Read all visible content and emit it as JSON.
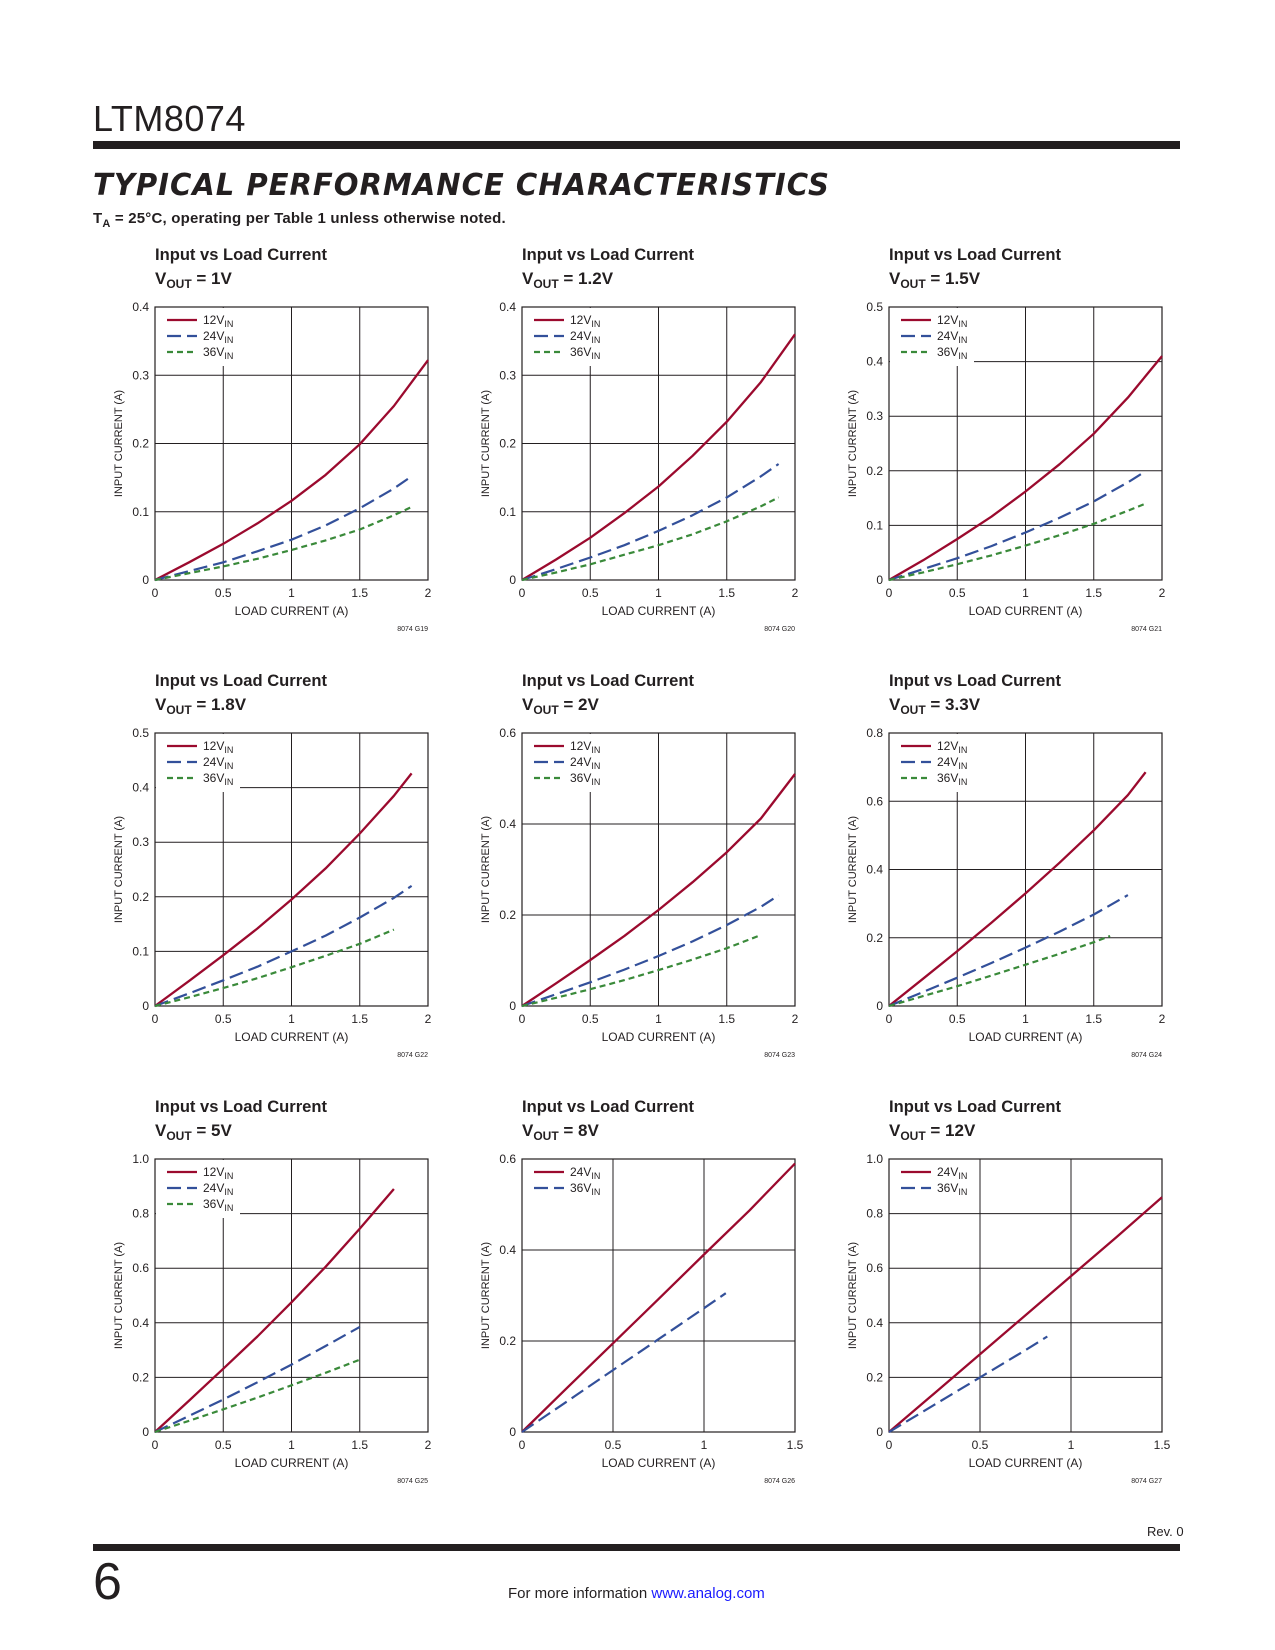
{
  "header": {
    "part_name": "LTM8074",
    "section_title": "TYPICAL PERFORMANCE CHARACTERISTICS",
    "conditions_prefix": "T",
    "conditions_sub": "A",
    "conditions_suffix": " = 25°C, operating per Table 1 unless otherwise noted."
  },
  "footer": {
    "revision": "Rev. 0",
    "page_number": "6",
    "info_text": "For more information ",
    "link_text": "www.analog.com"
  },
  "colors": {
    "12V": "#9b0a2e",
    "24V": "#33509a",
    "36V": "#3a8a3a",
    "grid": "#231f20"
  },
  "chart_data": [
    {
      "type": "line",
      "title": "Input vs Load Current",
      "subtitle_prefix": "V",
      "subtitle_sub": "OUT",
      "subtitle_value": " = 1V",
      "xlabel": "LOAD CURRENT (A)",
      "ylabel": "INPUT CURRENT (A)",
      "xlim": [
        0,
        2
      ],
      "ylim": [
        0,
        0.4
      ],
      "xticks": [
        "0",
        "0.5",
        "1",
        "1.5",
        "2"
      ],
      "yticks": [
        "0",
        "0.1",
        "0.2",
        "0.3",
        "0.4"
      ],
      "figure_id": "8074 G19",
      "series": [
        {
          "name_main": "12V",
          "name_sub": "IN",
          "color": "#9b0a2e",
          "dash": "solid",
          "x": [
            0,
            0.25,
            0.5,
            0.75,
            1.0,
            1.25,
            1.5,
            1.75,
            2.0
          ],
          "y": [
            0,
            0.026,
            0.053,
            0.083,
            0.116,
            0.154,
            0.199,
            0.255,
            0.322
          ]
        },
        {
          "name_main": "24V",
          "name_sub": "IN",
          "color": "#33509a",
          "dash": "dashed",
          "x": [
            0,
            0.25,
            0.5,
            0.75,
            1.0,
            1.25,
            1.5,
            1.75,
            1.88
          ],
          "y": [
            0,
            0.013,
            0.026,
            0.042,
            0.059,
            0.08,
            0.105,
            0.134,
            0.152
          ]
        },
        {
          "name_main": "36V",
          "name_sub": "IN",
          "color": "#3a8a3a",
          "dash": "dotted",
          "x": [
            0,
            0.25,
            0.5,
            0.75,
            1.0,
            1.25,
            1.5,
            1.75,
            1.88
          ],
          "y": [
            0,
            0.01,
            0.02,
            0.031,
            0.044,
            0.058,
            0.074,
            0.095,
            0.107
          ]
        }
      ]
    },
    {
      "type": "line",
      "title": "Input vs Load Current",
      "subtitle_prefix": "V",
      "subtitle_sub": "OUT",
      "subtitle_value": " = 1.2V",
      "xlabel": "LOAD CURRENT (A)",
      "ylabel": "INPUT CURRENT (A)",
      "xlim": [
        0,
        2
      ],
      "ylim": [
        0,
        0.4
      ],
      "xticks": [
        "0",
        "0.5",
        "1",
        "1.5",
        "2"
      ],
      "yticks": [
        "0",
        "0.1",
        "0.2",
        "0.3",
        "0.4"
      ],
      "figure_id": "8074 G20",
      "series": [
        {
          "name_main": "12V",
          "name_sub": "IN",
          "color": "#9b0a2e",
          "dash": "solid",
          "x": [
            0,
            0.25,
            0.5,
            0.75,
            1.0,
            1.25,
            1.5,
            1.75,
            2.0
          ],
          "y": [
            0,
            0.03,
            0.062,
            0.098,
            0.137,
            0.182,
            0.232,
            0.29,
            0.36
          ]
        },
        {
          "name_main": "24V",
          "name_sub": "IN",
          "color": "#33509a",
          "dash": "dashed",
          "x": [
            0,
            0.25,
            0.5,
            0.75,
            1.0,
            1.25,
            1.5,
            1.75,
            1.88
          ],
          "y": [
            0,
            0.016,
            0.033,
            0.051,
            0.072,
            0.095,
            0.121,
            0.152,
            0.17
          ]
        },
        {
          "name_main": "36V",
          "name_sub": "IN",
          "color": "#3a8a3a",
          "dash": "dotted",
          "x": [
            0,
            0.25,
            0.5,
            0.75,
            1.0,
            1.25,
            1.5,
            1.75,
            1.88
          ],
          "y": [
            0,
            0.011,
            0.023,
            0.037,
            0.051,
            0.067,
            0.086,
            0.108,
            0.121
          ]
        }
      ]
    },
    {
      "type": "line",
      "title": "Input vs Load Current",
      "subtitle_prefix": "V",
      "subtitle_sub": "OUT",
      "subtitle_value": " = 1.5V",
      "xlabel": "LOAD CURRENT (A)",
      "ylabel": "INPUT CURRENT (A)",
      "xlim": [
        0,
        2
      ],
      "ylim": [
        0,
        0.5
      ],
      "xticks": [
        "0",
        "0.5",
        "1",
        "1.5",
        "2"
      ],
      "yticks": [
        "0",
        "0.1",
        "0.2",
        "0.3",
        "0.4",
        "0.5"
      ],
      "figure_id": "8074 G21",
      "series": [
        {
          "name_main": "12V",
          "name_sub": "IN",
          "color": "#9b0a2e",
          "dash": "solid",
          "x": [
            0,
            0.25,
            0.5,
            0.75,
            1.0,
            1.25,
            1.5,
            1.75,
            2.0
          ],
          "y": [
            0,
            0.036,
            0.075,
            0.116,
            0.162,
            0.212,
            0.268,
            0.334,
            0.41
          ]
        },
        {
          "name_main": "24V",
          "name_sub": "IN",
          "color": "#33509a",
          "dash": "dashed",
          "x": [
            0,
            0.25,
            0.5,
            0.75,
            1.0,
            1.25,
            1.5,
            1.75,
            1.88
          ],
          "y": [
            0,
            0.02,
            0.04,
            0.062,
            0.087,
            0.114,
            0.144,
            0.179,
            0.199
          ]
        },
        {
          "name_main": "36V",
          "name_sub": "IN",
          "color": "#3a8a3a",
          "dash": "dotted",
          "x": [
            0,
            0.25,
            0.5,
            0.75,
            1.0,
            1.25,
            1.5,
            1.75,
            1.88
          ],
          "y": [
            0,
            0.014,
            0.029,
            0.045,
            0.063,
            0.082,
            0.103,
            0.127,
            0.14
          ]
        }
      ]
    },
    {
      "type": "line",
      "title": "Input vs Load Current",
      "subtitle_prefix": "V",
      "subtitle_sub": "OUT",
      "subtitle_value": " = 1.8V",
      "xlabel": "LOAD CURRENT (A)",
      "ylabel": "INPUT CURRENT (A)",
      "xlim": [
        0,
        2
      ],
      "ylim": [
        0,
        0.5
      ],
      "xticks": [
        "0",
        "0.5",
        "1",
        "1.5",
        "2"
      ],
      "yticks": [
        "0",
        "0.1",
        "0.2",
        "0.3",
        "0.4",
        "0.5"
      ],
      "figure_id": "8074 G22",
      "series": [
        {
          "name_main": "12V",
          "name_sub": "IN",
          "color": "#9b0a2e",
          "dash": "solid",
          "x": [
            0,
            0.25,
            0.5,
            0.75,
            1.0,
            1.25,
            1.5,
            1.75,
            1.88
          ],
          "y": [
            0,
            0.046,
            0.093,
            0.142,
            0.195,
            0.252,
            0.316,
            0.385,
            0.426
          ]
        },
        {
          "name_main": "24V",
          "name_sub": "IN",
          "color": "#33509a",
          "dash": "dashed",
          "x": [
            0,
            0.25,
            0.5,
            0.75,
            1.0,
            1.25,
            1.5,
            1.75,
            1.88
          ],
          "y": [
            0,
            0.023,
            0.047,
            0.072,
            0.1,
            0.129,
            0.162,
            0.198,
            0.22
          ]
        },
        {
          "name_main": "36V",
          "name_sub": "IN",
          "color": "#3a8a3a",
          "dash": "dotted",
          "x": [
            0,
            0.25,
            0.5,
            0.75,
            1.0,
            1.25,
            1.5,
            1.75
          ],
          "y": [
            0,
            0.016,
            0.033,
            0.051,
            0.071,
            0.092,
            0.114,
            0.14
          ]
        }
      ]
    },
    {
      "type": "line",
      "title": "Input vs Load Current",
      "subtitle_prefix": "V",
      "subtitle_sub": "OUT",
      "subtitle_value": " = 2V",
      "xlabel": "LOAD CURRENT (A)",
      "ylabel": "INPUT CURRENT (A)",
      "xlim": [
        0,
        2
      ],
      "ylim": [
        0,
        0.6
      ],
      "xticks": [
        "0",
        "0.5",
        "1",
        "1.5",
        "2"
      ],
      "yticks": [
        "0",
        "0.2",
        "0.4",
        "0.6"
      ],
      "figure_id": "8074 G23",
      "series": [
        {
          "name_main": "12V",
          "name_sub": "IN",
          "color": "#9b0a2e",
          "dash": "solid",
          "x": [
            0,
            0.25,
            0.5,
            0.75,
            1.0,
            1.25,
            1.5,
            1.75,
            2.0
          ],
          "y": [
            0,
            0.05,
            0.101,
            0.154,
            0.211,
            0.272,
            0.338,
            0.412,
            0.51
          ]
        },
        {
          "name_main": "24V",
          "name_sub": "IN",
          "color": "#33509a",
          "dash": "dashed",
          "x": [
            0,
            0.25,
            0.5,
            0.75,
            1.0,
            1.25,
            1.5,
            1.75,
            1.88
          ],
          "y": [
            0,
            0.026,
            0.052,
            0.08,
            0.11,
            0.142,
            0.178,
            0.218,
            0.243
          ]
        },
        {
          "name_main": "36V",
          "name_sub": "IN",
          "color": "#3a8a3a",
          "dash": "dotted",
          "x": [
            0,
            0.25,
            0.5,
            0.75,
            1.0,
            1.25,
            1.5,
            1.75
          ],
          "y": [
            0,
            0.018,
            0.037,
            0.057,
            0.079,
            0.102,
            0.127,
            0.156
          ]
        }
      ]
    },
    {
      "type": "line",
      "title": "Input vs Load Current",
      "subtitle_prefix": "V",
      "subtitle_sub": "OUT",
      "subtitle_value": " = 3.3V",
      "xlabel": "LOAD CURRENT (A)",
      "ylabel": "INPUT CURRENT (A)",
      "xlim": [
        0,
        2
      ],
      "ylim": [
        0,
        0.8
      ],
      "xticks": [
        "0",
        "0.5",
        "1",
        "1.5",
        "2"
      ],
      "yticks": [
        "0",
        "0.2",
        "0.4",
        "0.6",
        "0.8"
      ],
      "figure_id": "8074 G24",
      "series": [
        {
          "name_main": "12V",
          "name_sub": "IN",
          "color": "#9b0a2e",
          "dash": "solid",
          "x": [
            0,
            0.25,
            0.5,
            0.75,
            1.0,
            1.25,
            1.5,
            1.75,
            1.88
          ],
          "y": [
            0,
            0.08,
            0.161,
            0.244,
            0.33,
            0.42,
            0.515,
            0.618,
            0.685
          ]
        },
        {
          "name_main": "24V",
          "name_sub": "IN",
          "color": "#33509a",
          "dash": "dashed",
          "x": [
            0,
            0.25,
            0.5,
            0.75,
            1.0,
            1.25,
            1.5,
            1.75
          ],
          "y": [
            0,
            0.041,
            0.083,
            0.126,
            0.171,
            0.218,
            0.268,
            0.325
          ]
        },
        {
          "name_main": "36V",
          "name_sub": "IN",
          "color": "#3a8a3a",
          "dash": "dotted",
          "x": [
            0,
            0.25,
            0.5,
            0.75,
            1.0,
            1.25,
            1.5,
            1.62
          ],
          "y": [
            0,
            0.029,
            0.058,
            0.089,
            0.121,
            0.153,
            0.187,
            0.205
          ]
        }
      ]
    },
    {
      "type": "line",
      "title": "Input vs Load Current",
      "subtitle_prefix": "V",
      "subtitle_sub": "OUT",
      "subtitle_value": " = 5V",
      "xlabel": "LOAD CURRENT (A)",
      "ylabel": "INPUT CURRENT (A)",
      "xlim": [
        0,
        2
      ],
      "ylim": [
        0,
        1.0
      ],
      "xticks": [
        "0",
        "0.5",
        "1",
        "1.5",
        "2"
      ],
      "yticks": [
        "0",
        "0.2",
        "0.4",
        "0.6",
        "0.8",
        "1.0"
      ],
      "figure_id": "8074 G25",
      "series": [
        {
          "name_main": "12V",
          "name_sub": "IN",
          "color": "#9b0a2e",
          "dash": "solid",
          "x": [
            0,
            0.25,
            0.5,
            0.75,
            1.0,
            1.25,
            1.5,
            1.75
          ],
          "y": [
            0,
            0.115,
            0.232,
            0.35,
            0.475,
            0.605,
            0.745,
            0.89
          ]
        },
        {
          "name_main": "24V",
          "name_sub": "IN",
          "color": "#33509a",
          "dash": "dashed",
          "x": [
            0,
            0.25,
            0.5,
            0.75,
            1.0,
            1.25,
            1.5
          ],
          "y": [
            0,
            0.059,
            0.119,
            0.182,
            0.247,
            0.315,
            0.385
          ]
        },
        {
          "name_main": "36V",
          "name_sub": "IN",
          "color": "#3a8a3a",
          "dash": "dotted",
          "x": [
            0,
            0.25,
            0.5,
            0.75,
            1.0,
            1.25,
            1.5
          ],
          "y": [
            0,
            0.041,
            0.083,
            0.126,
            0.171,
            0.217,
            0.265
          ]
        }
      ]
    },
    {
      "type": "line",
      "title": "Input vs Load Current",
      "subtitle_prefix": "V",
      "subtitle_sub": "OUT",
      "subtitle_value": " = 8V",
      "xlabel": "LOAD CURRENT (A)",
      "ylabel": "INPUT CURRENT (A)",
      "xlim": [
        0,
        1.5
      ],
      "ylim": [
        0,
        0.6
      ],
      "xticks": [
        "0",
        "0.5",
        "1",
        "1.5"
      ],
      "yticks": [
        "0",
        "0.2",
        "0.4",
        "0.6"
      ],
      "figure_id": "8074 G26",
      "series": [
        {
          "name_main": "24V",
          "name_sub": "IN",
          "color": "#9b0a2e",
          "dash": "solid",
          "x": [
            0,
            0.25,
            0.5,
            0.75,
            1.0,
            1.25,
            1.5
          ],
          "y": [
            0,
            0.098,
            0.195,
            0.292,
            0.39,
            0.487,
            0.59
          ]
        },
        {
          "name_main": "36V",
          "name_sub": "IN",
          "color": "#33509a",
          "dash": "dashed",
          "x": [
            0,
            0.25,
            0.5,
            0.75,
            1.0,
            1.12
          ],
          "y": [
            0,
            0.068,
            0.136,
            0.204,
            0.272,
            0.305
          ]
        }
      ]
    },
    {
      "type": "line",
      "title": "Input vs Load Current",
      "subtitle_prefix": "V",
      "subtitle_sub": "OUT",
      "subtitle_value": " = 12V",
      "xlabel": "LOAD CURRENT (A)",
      "ylabel": "INPUT CURRENT (A)",
      "xlim": [
        0,
        1.5
      ],
      "ylim": [
        0,
        1.0
      ],
      "xticks": [
        "0",
        "0.5",
        "1",
        "1.5"
      ],
      "yticks": [
        "0",
        "0.2",
        "0.4",
        "0.6",
        "0.8",
        "1.0"
      ],
      "figure_id": "8074 G27",
      "series": [
        {
          "name_main": "24V",
          "name_sub": "IN",
          "color": "#9b0a2e",
          "dash": "solid",
          "x": [
            0,
            0.25,
            0.5,
            0.75,
            1.0,
            1.25,
            1.5
          ],
          "y": [
            0,
            0.142,
            0.285,
            0.428,
            0.571,
            0.714,
            0.86
          ]
        },
        {
          "name_main": "36V",
          "name_sub": "IN",
          "color": "#33509a",
          "dash": "dashed",
          "x": [
            0,
            0.25,
            0.5,
            0.75,
            0.87
          ],
          "y": [
            0,
            0.1,
            0.2,
            0.3,
            0.35
          ]
        }
      ]
    }
  ]
}
